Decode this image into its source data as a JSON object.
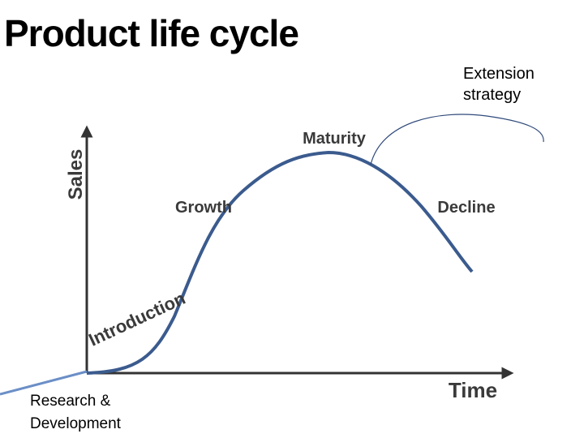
{
  "title": "Product life cycle",
  "annotations": {
    "extension": "Extension strategy",
    "research": "Research & Development"
  },
  "axes": {
    "y": "Sales",
    "x": "Time"
  },
  "stages": [
    "Introduction",
    "Growth",
    "Maturity",
    "Decline"
  ]
}
